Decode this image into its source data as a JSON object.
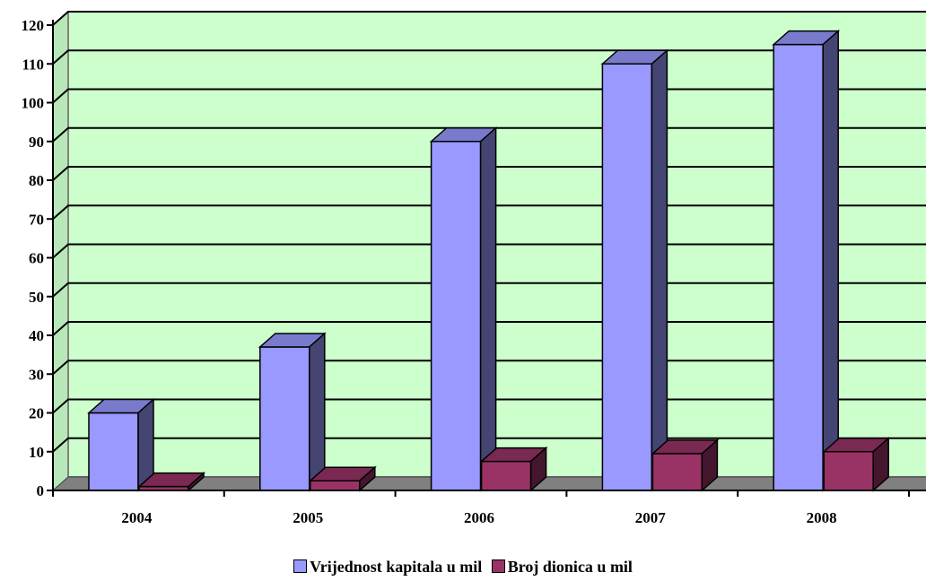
{
  "chart_data": {
    "type": "bar",
    "categories": [
      "2004",
      "2005",
      "2006",
      "2007",
      "2008"
    ],
    "series": [
      {
        "name": "Vrijednost kapitala u mil",
        "values": [
          20,
          37,
          90,
          110,
          115
        ],
        "color": "#9999ff"
      },
      {
        "name": "Broj dionica u mil",
        "values": [
          1,
          2.5,
          7.5,
          9.5,
          10
        ],
        "color": "#993366"
      }
    ],
    "yticks": [
      0,
      10,
      20,
      30,
      40,
      50,
      60,
      70,
      80,
      90,
      100,
      110,
      120
    ],
    "ylim": [
      0,
      120
    ],
    "grid": true,
    "legend_position": "bottom",
    "plot_background": "#ccffcc",
    "floor_color": "#808080"
  }
}
